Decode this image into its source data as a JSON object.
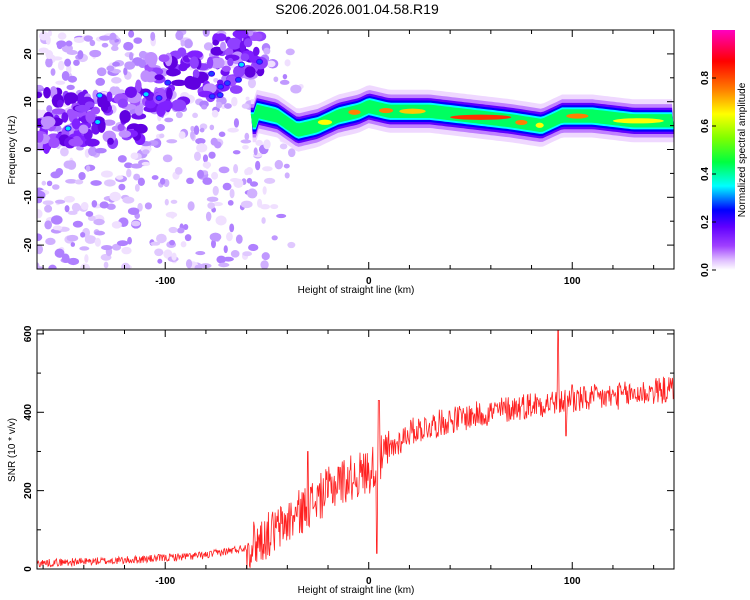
{
  "title": "S206.2026.001.04.58.R19",
  "chart_data": [
    {
      "type": "heatmap",
      "title": "S206.2026.001.04.58.R19",
      "xlabel": "Height of straight line (km)",
      "ylabel": "Frequency (Hz)",
      "xlim": [
        -163,
        150
      ],
      "ylim": [
        -25,
        25
      ],
      "xticks": [
        -100,
        0,
        100
      ],
      "yticks": [
        -20,
        -10,
        0,
        10,
        20
      ],
      "colorbar": {
        "label": "Normalized spectral amplitude",
        "range": [
          0,
          1
        ],
        "ticks": [
          0.0,
          0.2,
          0.4,
          0.6,
          0.8
        ],
        "tick_labels": [
          "0.0",
          "0.2",
          "0.4",
          "0.6",
          "0.8"
        ],
        "colors": [
          "#ffffff",
          "#c080ff",
          "#8000ff",
          "#0000ff",
          "#00ffff",
          "#00ff00",
          "#ffff00",
          "#ff8000",
          "#ff0000",
          "#ff00a0"
        ]
      },
      "ridge": {
        "description_points": [
          [
            -55,
            8
          ],
          [
            -45,
            7
          ],
          [
            -35,
            4
          ],
          [
            -25,
            5
          ],
          [
            -15,
            7
          ],
          [
            -5,
            8
          ],
          [
            0,
            9
          ],
          [
            10,
            8
          ],
          [
            30,
            8
          ],
          [
            50,
            7
          ],
          [
            70,
            6
          ],
          [
            85,
            5
          ],
          [
            95,
            7
          ],
          [
            110,
            7
          ],
          [
            130,
            6
          ],
          [
            150,
            6
          ]
        ],
        "peak_amplitude": 0.9
      }
    },
    {
      "type": "line",
      "xlabel": "Height of straight line (km)",
      "ylabel": "SNR (10 * v/v)",
      "xlim": [
        -163,
        150
      ],
      "ylim": [
        0,
        610
      ],
      "xticks": [
        -100,
        0,
        100
      ],
      "yticks": [
        0,
        200,
        400,
        600
      ],
      "series": [
        {
          "name": "SNR",
          "color": "#ff2020",
          "trend_points": [
            [
              -163,
              15
            ],
            [
              -120,
              22
            ],
            [
              -80,
              35
            ],
            [
              -60,
              55
            ],
            [
              -45,
              100
            ],
            [
              -30,
              160
            ],
            [
              -15,
              220
            ],
            [
              0,
              250
            ],
            [
              10,
              300
            ],
            [
              20,
              350
            ],
            [
              40,
              380
            ],
            [
              60,
              400
            ],
            [
              80,
              420
            ],
            [
              100,
              430
            ],
            [
              120,
              440
            ],
            [
              150,
              460
            ]
          ],
          "spikes": [
            [
              5,
              430
            ],
            [
              4,
              40
            ],
            [
              93,
              610
            ],
            [
              97,
              340
            ],
            [
              100,
              470
            ],
            [
              -30,
              300
            ],
            [
              -15,
              260
            ]
          ]
        }
      ]
    }
  ]
}
